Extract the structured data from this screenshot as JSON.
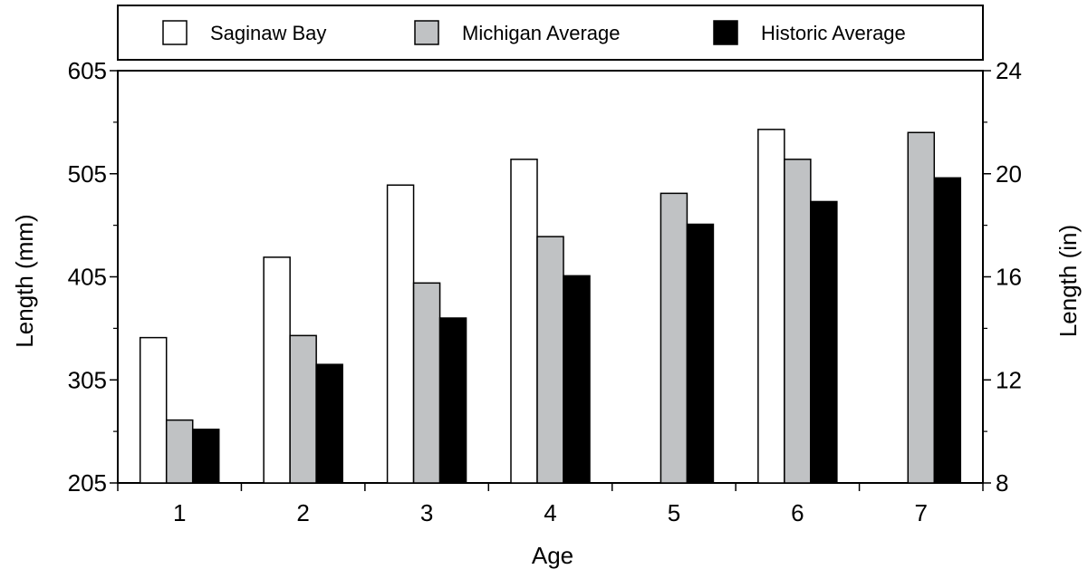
{
  "chart_data": {
    "type": "bar",
    "title": "",
    "xlabel": "Age",
    "ylabel": "Length (mm)",
    "ylabel_right": "Length (in)",
    "categories": [
      "1",
      "2",
      "3",
      "4",
      "5",
      "6",
      "7"
    ],
    "series": [
      {
        "name": "Saginaw Bay",
        "color": "#ffffff",
        "values": [
          346,
          424,
          494,
          519,
          null,
          548,
          null
        ]
      },
      {
        "name": "Michigan Average",
        "color": "#c0c2c4",
        "values": [
          266,
          348,
          399,
          444,
          486,
          519,
          545
        ]
      },
      {
        "name": "Historic Average",
        "color": "#000000",
        "values": [
          257,
          320,
          365,
          406,
          456,
          478,
          501
        ]
      }
    ],
    "ylim": [
      205,
      605
    ],
    "yticks": [
      "205",
      "305",
      "405",
      "505",
      "605"
    ],
    "ylim_right": [
      8,
      24
    ],
    "yticks_right": [
      "8",
      "12",
      "16",
      "20",
      "24"
    ],
    "grid": false,
    "legend_position": "top"
  }
}
